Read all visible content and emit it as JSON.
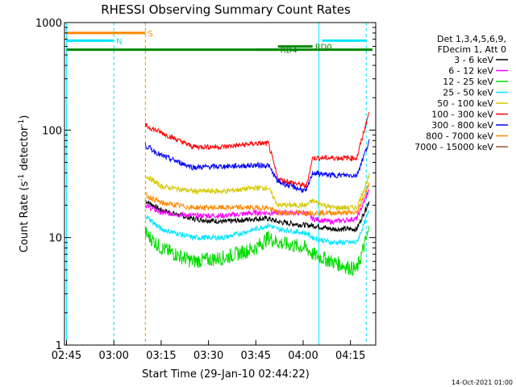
{
  "chart_data": {
    "type": "line",
    "title": "RHESSI Observing Summary Count Rates",
    "xlabel": "Start Time (29-Jan-10 02:44:22)",
    "ylabel_main": "Count Rate (s",
    "ylabel_sup1": "-1",
    "ylabel_mid": " detector",
    "ylabel_sup2": "-1",
    "ylabel_end": ")",
    "footer": "14-Oct-2021 01:00",
    "y_scale": "log",
    "ylim": [
      1,
      1000
    ],
    "xlim": [
      "02:44:22",
      "04:23:00"
    ],
    "x_ticks": [
      "02:45",
      "03:00",
      "03:15",
      "03:30",
      "03:45",
      "04:00",
      "04:15"
    ],
    "y_ticks": [
      "1",
      "10",
      "100",
      "1000"
    ],
    "legend_header": [
      "Det 1,3,4,5,6,9,",
      "FDecim 1, Att 0"
    ],
    "legend_placement": "right",
    "series": [
      {
        "name": "3 - 6 keV",
        "color": "#000000",
        "points": [
          [
            "03:10",
            22
          ],
          [
            "03:15",
            18
          ],
          [
            "03:25",
            15
          ],
          [
            "03:35",
            14
          ],
          [
            "03:45",
            15
          ],
          [
            "03:49",
            15
          ],
          [
            "03:52",
            14
          ],
          [
            "04:01",
            13
          ],
          [
            "04:03",
            13
          ],
          [
            "04:09",
            12
          ],
          [
            "04:17",
            12
          ],
          [
            "04:21",
            22
          ]
        ]
      },
      {
        "name": "6 - 12 keV",
        "color": "#ff00ff",
        "points": [
          [
            "03:10",
            20
          ],
          [
            "03:15",
            17
          ],
          [
            "03:25",
            16
          ],
          [
            "03:35",
            16
          ],
          [
            "03:45",
            17
          ],
          [
            "03:49",
            17
          ],
          [
            "03:52",
            17
          ],
          [
            "04:01",
            17
          ],
          [
            "04:03",
            15
          ],
          [
            "04:09",
            14
          ],
          [
            "04:17",
            15
          ],
          [
            "04:21",
            28
          ]
        ]
      },
      {
        "name": "12 - 25 keV",
        "color": "#00dd00",
        "points": [
          [
            "03:10",
            11
          ],
          [
            "03:15",
            8
          ],
          [
            "03:25",
            6
          ],
          [
            "03:35",
            6.5
          ],
          [
            "03:45",
            8
          ],
          [
            "03:49",
            10
          ],
          [
            "03:52",
            9
          ],
          [
            "04:01",
            8
          ],
          [
            "04:03",
            7
          ],
          [
            "04:09",
            6
          ],
          [
            "04:17",
            5
          ],
          [
            "04:21",
            12
          ]
        ]
      },
      {
        "name": "25 - 50 keV",
        "color": "#00e5ff",
        "points": [
          [
            "03:10",
            16
          ],
          [
            "03:15",
            12
          ],
          [
            "03:25",
            10
          ],
          [
            "03:35",
            10
          ],
          [
            "03:45",
            12
          ],
          [
            "03:49",
            13
          ],
          [
            "03:52",
            12
          ],
          [
            "04:01",
            11
          ],
          [
            "04:03",
            10
          ],
          [
            "04:09",
            9
          ],
          [
            "04:17",
            9
          ],
          [
            "04:21",
            18
          ]
        ]
      },
      {
        "name": "50 - 100 keV",
        "color": "#d4c800",
        "points": [
          [
            "03:10",
            38
          ],
          [
            "03:15",
            30
          ],
          [
            "03:25",
            27
          ],
          [
            "03:35",
            27
          ],
          [
            "03:45",
            29
          ],
          [
            "03:49",
            29
          ],
          [
            "03:52",
            20
          ],
          [
            "04:01",
            20
          ],
          [
            "04:03",
            22
          ],
          [
            "04:09",
            19
          ],
          [
            "04:17",
            19
          ],
          [
            "04:21",
            38
          ]
        ]
      },
      {
        "name": "100 - 300 keV",
        "color": "#ff0000",
        "points": [
          [
            "03:10",
            110
          ],
          [
            "03:15",
            95
          ],
          [
            "03:25",
            70
          ],
          [
            "03:35",
            70
          ],
          [
            "03:45",
            75
          ],
          [
            "03:49",
            75
          ],
          [
            "03:52",
            35
          ],
          [
            "04:01",
            30
          ],
          [
            "04:03",
            55
          ],
          [
            "04:09",
            55
          ],
          [
            "04:17",
            55
          ],
          [
            "04:21",
            150
          ]
        ]
      },
      {
        "name": "300 - 800 keV",
        "color": "#0000ff",
        "points": [
          [
            "03:10",
            72
          ],
          [
            "03:15",
            58
          ],
          [
            "03:25",
            45
          ],
          [
            "03:35",
            46
          ],
          [
            "03:45",
            47
          ],
          [
            "03:49",
            47
          ],
          [
            "03:52",
            33
          ],
          [
            "04:01",
            27
          ],
          [
            "04:03",
            40
          ],
          [
            "04:09",
            38
          ],
          [
            "04:17",
            38
          ],
          [
            "04:21",
            80
          ]
        ]
      },
      {
        "name": "800 - 7000 keV",
        "color": "#ff8800",
        "points": [
          [
            "03:10",
            25
          ],
          [
            "03:15",
            21
          ],
          [
            "03:25",
            19
          ],
          [
            "03:35",
            19
          ],
          [
            "03:45",
            19
          ],
          [
            "03:49",
            19
          ],
          [
            "03:52",
            17
          ],
          [
            "04:01",
            17
          ],
          [
            "04:03",
            17
          ],
          [
            "04:09",
            17
          ],
          [
            "04:17",
            17
          ],
          [
            "04:21",
            32
          ]
        ]
      },
      {
        "name": "7000 - 15000 keV",
        "color": "#a0522d",
        "points": []
      }
    ],
    "state_bars": [
      {
        "label": "S",
        "color": "#ff8800",
        "y_value": 800,
        "x": [
          "02:45",
          "03:10"
        ]
      },
      {
        "label": "N",
        "color": "#00e5ff",
        "y_value": 680,
        "x": [
          "02:45",
          "03:00"
        ]
      },
      {
        "label": "",
        "color": "#00e5ff",
        "y_value": 680,
        "x": [
          "04:06",
          "04:20"
        ]
      },
      {
        "label": "",
        "color": "#008800",
        "y_value": 560,
        "x": [
          "02:45",
          "04:22"
        ]
      },
      {
        "label": "RD0",
        "color": "#008800",
        "y_value": 600,
        "x": [
          "03:52",
          "04:03"
        ]
      },
      {
        "label": "RD4",
        "color": "#008800",
        "y_value": 560,
        "x": [
          "03:45",
          "03:52"
        ]
      }
    ],
    "vlines": [
      {
        "x": "02:45",
        "color": "#00e5ff",
        "style": "solid"
      },
      {
        "x": "03:00",
        "color": "#00e5ff",
        "style": "dashed"
      },
      {
        "x": "03:10",
        "color": "#ff8800",
        "style": "dashed"
      },
      {
        "x": "04:05",
        "color": "#00e5ff",
        "style": "solid"
      },
      {
        "x": "04:20",
        "color": "#00e5ff",
        "style": "dashed"
      }
    ]
  }
}
